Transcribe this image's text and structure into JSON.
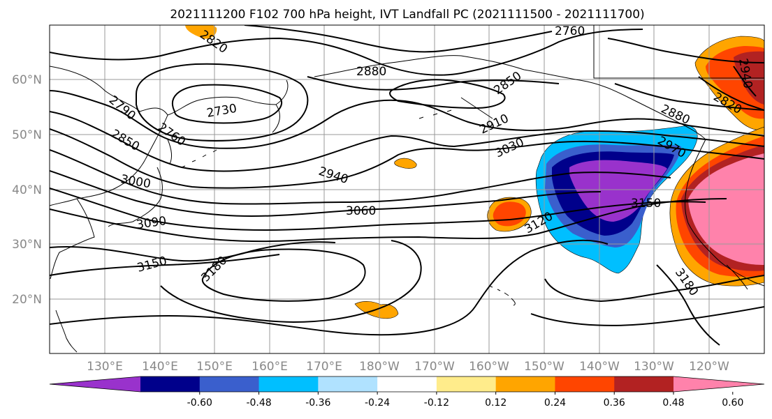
{
  "title": "2021111200 F102 700 hPa height, IVT Landfall PC (2021111500 - 2021111700)",
  "lat_labels": [
    "60°N",
    "50°N",
    "40°N",
    "30°N",
    "20°N"
  ],
  "lon_labels": [
    "130°E",
    "140°E",
    "150°E",
    "160°E",
    "170°E",
    "180°W",
    "170°W",
    "160°W",
    "150°W",
    "140°W",
    "130°W",
    "120°W"
  ],
  "contour_labels": [
    "2820",
    "2760",
    "2880",
    "2730",
    "2790",
    "2760",
    "2850",
    "2850",
    "2910",
    "3000",
    "2940",
    "3030",
    "3060",
    "3090",
    "3120",
    "3150",
    "3180",
    "3150",
    "3180",
    "2880",
    "2970",
    "2820",
    "2940"
  ],
  "colorbar": {
    "colors": [
      "#9932cc",
      "#00008b",
      "#3a5fcd",
      "#00bfff",
      "#b0e2ff",
      "#ffffff",
      "#ffec8b",
      "#ffa500",
      "#ff4500",
      "#b22222",
      "#ff82ab"
    ],
    "tick_labels": [
      "-0.60",
      "-0.48",
      "-0.36",
      "-0.24",
      "-0.12",
      "0.12",
      "0.24",
      "0.36",
      "0.48",
      "0.60"
    ]
  },
  "shading": {
    "negative_region": "northeast Pacific (off North America coast)",
    "positive_region": "western North America coast"
  }
}
